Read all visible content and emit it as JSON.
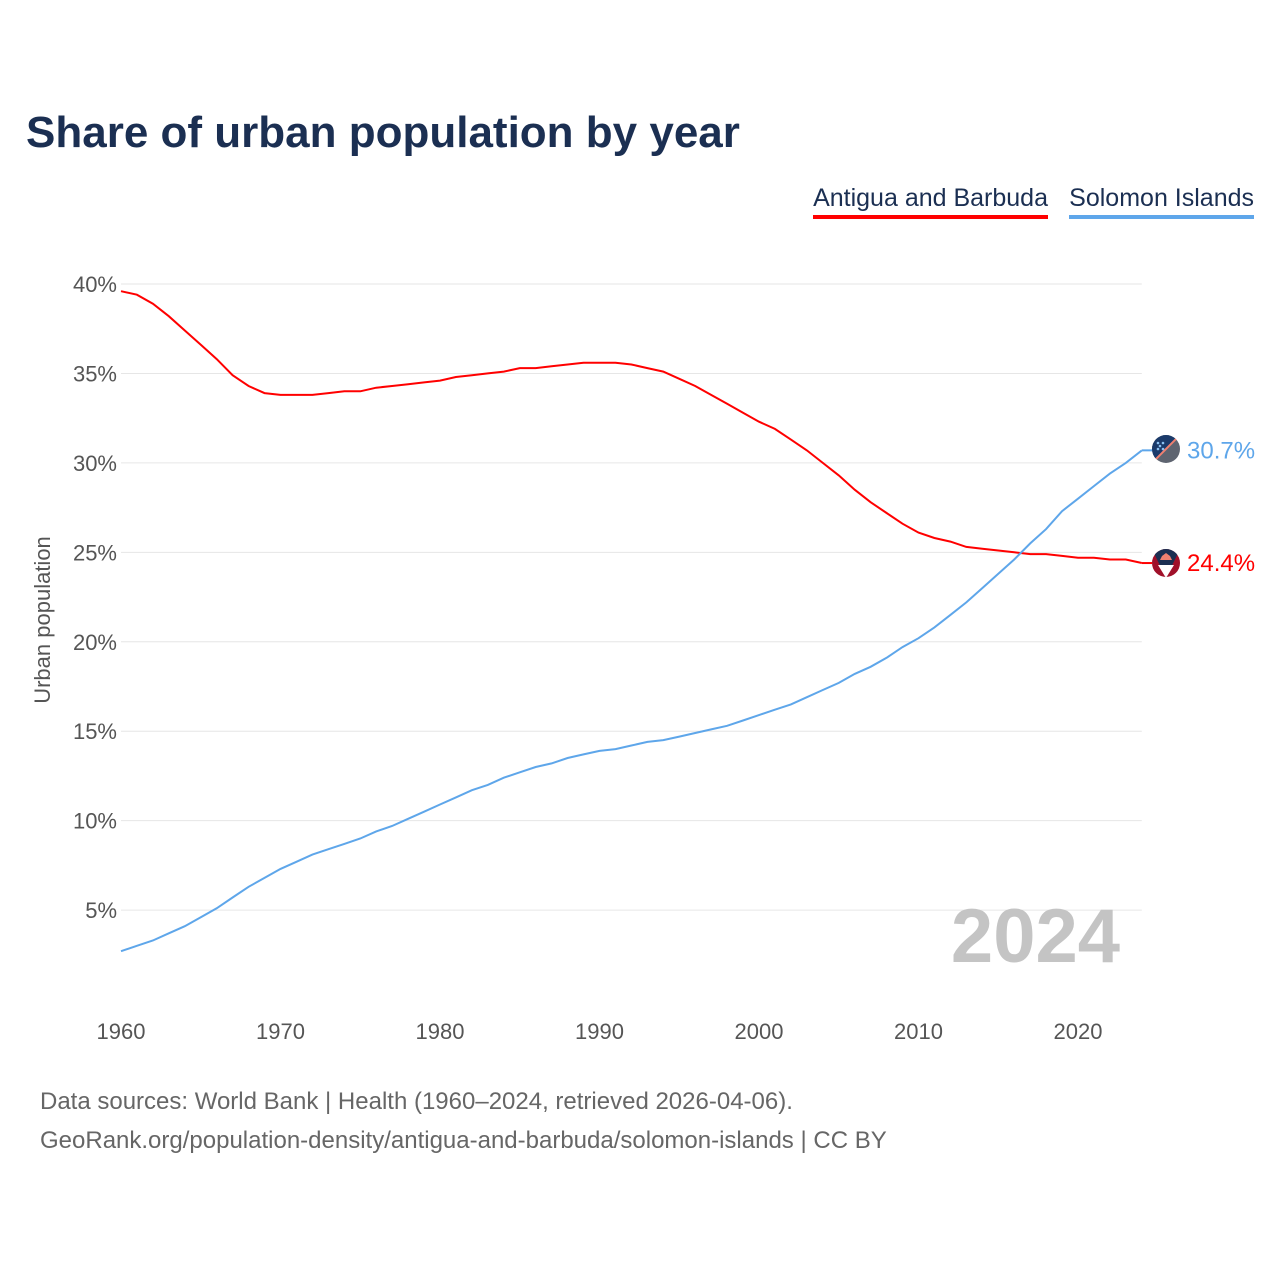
{
  "chart_data": {
    "type": "line",
    "title": "Share of urban population by year",
    "xlabel": "",
    "ylabel": "Urban population",
    "xlim": [
      1960,
      2024
    ],
    "ylim": [
      0,
      40
    ],
    "yticks": [
      5,
      10,
      15,
      20,
      25,
      30,
      35,
      40
    ],
    "ytick_labels": [
      "5%",
      "10%",
      "15%",
      "20%",
      "25%",
      "30%",
      "35%",
      "40%"
    ],
    "xticks": [
      1960,
      1970,
      1980,
      1990,
      2000,
      2010,
      2020
    ],
    "xtick_labels": [
      "1960",
      "1970",
      "1980",
      "1990",
      "2000",
      "2010",
      "2020"
    ],
    "grid": true,
    "legend_position": "top-right",
    "watermark_year": "2024",
    "x": [
      1960,
      1961,
      1962,
      1963,
      1964,
      1965,
      1966,
      1967,
      1968,
      1969,
      1970,
      1971,
      1972,
      1973,
      1974,
      1975,
      1976,
      1977,
      1978,
      1979,
      1980,
      1981,
      1982,
      1983,
      1984,
      1985,
      1986,
      1987,
      1988,
      1989,
      1990,
      1991,
      1992,
      1993,
      1994,
      1995,
      1996,
      1997,
      1998,
      1999,
      2000,
      2001,
      2002,
      2003,
      2004,
      2005,
      2006,
      2007,
      2008,
      2009,
      2010,
      2011,
      2012,
      2013,
      2014,
      2015,
      2016,
      2017,
      2018,
      2019,
      2020,
      2021,
      2022,
      2023,
      2024
    ],
    "series": [
      {
        "name": "Antigua and Barbuda",
        "color": "#ff0000",
        "end_label": "24.4%",
        "values": [
          39.6,
          39.4,
          38.9,
          38.2,
          37.4,
          36.6,
          35.8,
          34.9,
          34.3,
          33.9,
          33.8,
          33.8,
          33.8,
          33.9,
          34.0,
          34.0,
          34.2,
          34.3,
          34.4,
          34.5,
          34.6,
          34.8,
          34.9,
          35.0,
          35.1,
          35.3,
          35.3,
          35.4,
          35.5,
          35.6,
          35.6,
          35.6,
          35.5,
          35.3,
          35.1,
          34.7,
          34.3,
          33.8,
          33.3,
          32.8,
          32.3,
          31.9,
          31.3,
          30.7,
          30.0,
          29.3,
          28.5,
          27.8,
          27.2,
          26.6,
          26.1,
          25.8,
          25.6,
          25.3,
          25.2,
          25.1,
          25.0,
          24.9,
          24.9,
          24.8,
          24.7,
          24.7,
          24.6,
          24.6,
          24.4
        ]
      },
      {
        "name": "Solomon Islands",
        "color": "#5ea6ea",
        "end_label": "30.7%",
        "values": [
          2.7,
          3.0,
          3.3,
          3.7,
          4.1,
          4.6,
          5.1,
          5.7,
          6.3,
          6.8,
          7.3,
          7.7,
          8.1,
          8.4,
          8.7,
          9.0,
          9.4,
          9.7,
          10.1,
          10.5,
          10.9,
          11.3,
          11.7,
          12.0,
          12.4,
          12.7,
          13.0,
          13.2,
          13.5,
          13.7,
          13.9,
          14.0,
          14.2,
          14.4,
          14.5,
          14.7,
          14.9,
          15.1,
          15.3,
          15.6,
          15.9,
          16.2,
          16.5,
          16.9,
          17.3,
          17.7,
          18.2,
          18.6,
          19.1,
          19.7,
          20.2,
          20.8,
          21.5,
          22.2,
          23.0,
          23.8,
          24.6,
          25.5,
          26.3,
          27.3,
          28.0,
          28.7,
          29.4,
          30.0,
          30.7
        ]
      }
    ]
  },
  "footer": {
    "line1": "Data sources: World Bank | Health (1960–2024, retrieved 2026-04-06).",
    "line2": "GeoRank.org/population-density/antigua-and-barbuda/solomon-islands | CC BY"
  }
}
